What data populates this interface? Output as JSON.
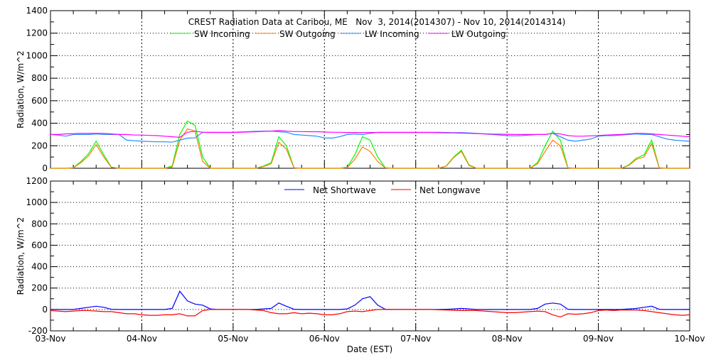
{
  "title": "CREST Radiation Data at Caribou, ME   Nov  3, 2014(2014307) - Nov 10, 2014(2014314)",
  "xlabel": "Date (EST)",
  "chart_data": [
    {
      "type": "line",
      "ylabel": "Radiation, W/m^2",
      "ylim": [
        0,
        1400
      ],
      "yticks": [
        0,
        200,
        400,
        600,
        800,
        1000,
        1200,
        1400
      ],
      "x_start": "2014-11-03T00:00",
      "x_step_hours": 2,
      "xlim": [
        "2014-11-03",
        "2014-11-10"
      ],
      "xticks": [
        "03-Nov",
        "04-Nov",
        "05-Nov",
        "06-Nov",
        "07-Nov",
        "08-Nov",
        "09-Nov",
        "10-Nov"
      ],
      "grid": true,
      "legend": "top",
      "series": [
        {
          "name": "SW Incoming",
          "color": "#00ff00",
          "values": [
            0,
            0,
            0,
            5,
            60,
            130,
            240,
            120,
            10,
            0,
            0,
            0,
            0,
            0,
            0,
            0,
            20,
            300,
            420,
            380,
            100,
            0,
            0,
            0,
            0,
            0,
            0,
            0,
            20,
            50,
            280,
            200,
            5,
            0,
            0,
            0,
            0,
            0,
            0,
            10,
            120,
            280,
            250,
            100,
            5,
            0,
            0,
            0,
            0,
            0,
            0,
            0,
            20,
            100,
            160,
            30,
            0,
            0,
            0,
            0,
            0,
            0,
            0,
            0,
            50,
            200,
            330,
            250,
            5,
            0,
            0,
            0,
            0,
            0,
            0,
            0,
            30,
            90,
            120,
            250,
            5,
            0,
            0,
            0,
            0
          ]
        },
        {
          "name": "SW Outgoing",
          "color": "#ff7f00",
          "values": [
            0,
            0,
            0,
            3,
            50,
            110,
            210,
            100,
            8,
            0,
            0,
            0,
            0,
            0,
            0,
            0,
            10,
            250,
            350,
            330,
            60,
            0,
            0,
            0,
            0,
            0,
            0,
            0,
            15,
            40,
            230,
            170,
            3,
            0,
            0,
            0,
            0,
            0,
            0,
            5,
            80,
            190,
            150,
            60,
            3,
            0,
            0,
            0,
            0,
            0,
            0,
            0,
            18,
            95,
            150,
            25,
            0,
            0,
            0,
            0,
            0,
            0,
            0,
            0,
            40,
            150,
            250,
            200,
            3,
            0,
            0,
            0,
            0,
            0,
            0,
            0,
            25,
            80,
            100,
            220,
            3,
            0,
            0,
            0,
            0
          ]
        },
        {
          "name": "LW Incoming",
          "color": "#1e8cff",
          "values": [
            300,
            295,
            285,
            300,
            300,
            300,
            305,
            300,
            300,
            300,
            250,
            245,
            240,
            238,
            235,
            235,
            232,
            250,
            268,
            270,
            320,
            320,
            320,
            320,
            320,
            322,
            325,
            328,
            330,
            330,
            325,
            320,
            300,
            295,
            290,
            285,
            270,
            268,
            280,
            300,
            305,
            300,
            310,
            320,
            320,
            320,
            320,
            320,
            320,
            320,
            320,
            320,
            318,
            316,
            316,
            314,
            310,
            305,
            300,
            295,
            290,
            288,
            290,
            295,
            300,
            300,
            310,
            280,
            250,
            240,
            250,
            260,
            285,
            290,
            290,
            295,
            300,
            305,
            300,
            300,
            280,
            260,
            250,
            245,
            240
          ]
        },
        {
          "name": "LW Outgoing",
          "color": "#ff00ff",
          "values": [
            300,
            300,
            305,
            308,
            310,
            310,
            310,
            310,
            305,
            300,
            300,
            295,
            295,
            292,
            290,
            285,
            280,
            275,
            320,
            330,
            320,
            318,
            318,
            318,
            318,
            320,
            322,
            325,
            328,
            330,
            335,
            330,
            326,
            326,
            325,
            325,
            322,
            320,
            320,
            318,
            318,
            318,
            318,
            318,
            318,
            318,
            318,
            318,
            318,
            318,
            318,
            316,
            315,
            314,
            312,
            310,
            308,
            306,
            304,
            303,
            302,
            300,
            300,
            300,
            300,
            300,
            310,
            305,
            290,
            285,
            285,
            288,
            290,
            295,
            298,
            300,
            305,
            310,
            310,
            305,
            300,
            295,
            290,
            285,
            280
          ]
        }
      ]
    },
    {
      "type": "line",
      "ylabel": "Radiation, W/m^2",
      "ylim": [
        -200,
        1200
      ],
      "yticks": [
        -200,
        0,
        200,
        400,
        600,
        800,
        1000,
        1200
      ],
      "x_start": "2014-11-03T00:00",
      "x_step_hours": 2,
      "xlim": [
        "2014-11-03",
        "2014-11-10"
      ],
      "xticks": [
        "03-Nov",
        "04-Nov",
        "05-Nov",
        "06-Nov",
        "07-Nov",
        "08-Nov",
        "09-Nov",
        "10-Nov"
      ],
      "grid": true,
      "legend": "top",
      "series": [
        {
          "name": "Net Shortwave",
          "color": "#0000ff",
          "values": [
            0,
            0,
            0,
            0,
            10,
            20,
            30,
            20,
            2,
            0,
            0,
            0,
            0,
            0,
            0,
            0,
            10,
            170,
            80,
            50,
            40,
            5,
            0,
            0,
            0,
            0,
            0,
            0,
            5,
            10,
            60,
            30,
            2,
            0,
            0,
            0,
            0,
            0,
            0,
            5,
            40,
            100,
            120,
            40,
            2,
            0,
            0,
            0,
            0,
            0,
            0,
            0,
            2,
            5,
            10,
            5,
            0,
            0,
            0,
            0,
            0,
            0,
            0,
            0,
            10,
            50,
            60,
            50,
            2,
            0,
            0,
            0,
            0,
            0,
            0,
            0,
            5,
            10,
            20,
            30,
            2,
            0,
            0,
            0,
            0
          ]
        },
        {
          "name": "Net Longwave",
          "color": "#ff0000",
          "values": [
            -10,
            -15,
            -20,
            -15,
            -10,
            -10,
            -15,
            -20,
            -20,
            -30,
            -40,
            -40,
            -50,
            -55,
            -55,
            -50,
            -50,
            -40,
            -60,
            -60,
            -10,
            0,
            0,
            0,
            0,
            0,
            0,
            -5,
            -10,
            -30,
            -40,
            -40,
            -30,
            -40,
            -35,
            -40,
            -50,
            -50,
            -40,
            -20,
            -15,
            -20,
            -10,
            0,
            0,
            0,
            0,
            0,
            0,
            0,
            0,
            -3,
            -5,
            -8,
            -10,
            -10,
            -10,
            -15,
            -20,
            -25,
            -30,
            -30,
            -25,
            -20,
            -15,
            -20,
            -50,
            -70,
            -40,
            -45,
            -40,
            -30,
            -10,
            -5,
            -10,
            -5,
            -5,
            -5,
            -10,
            -20,
            -30,
            -40,
            -50,
            -55,
            -50
          ]
        }
      ]
    }
  ]
}
